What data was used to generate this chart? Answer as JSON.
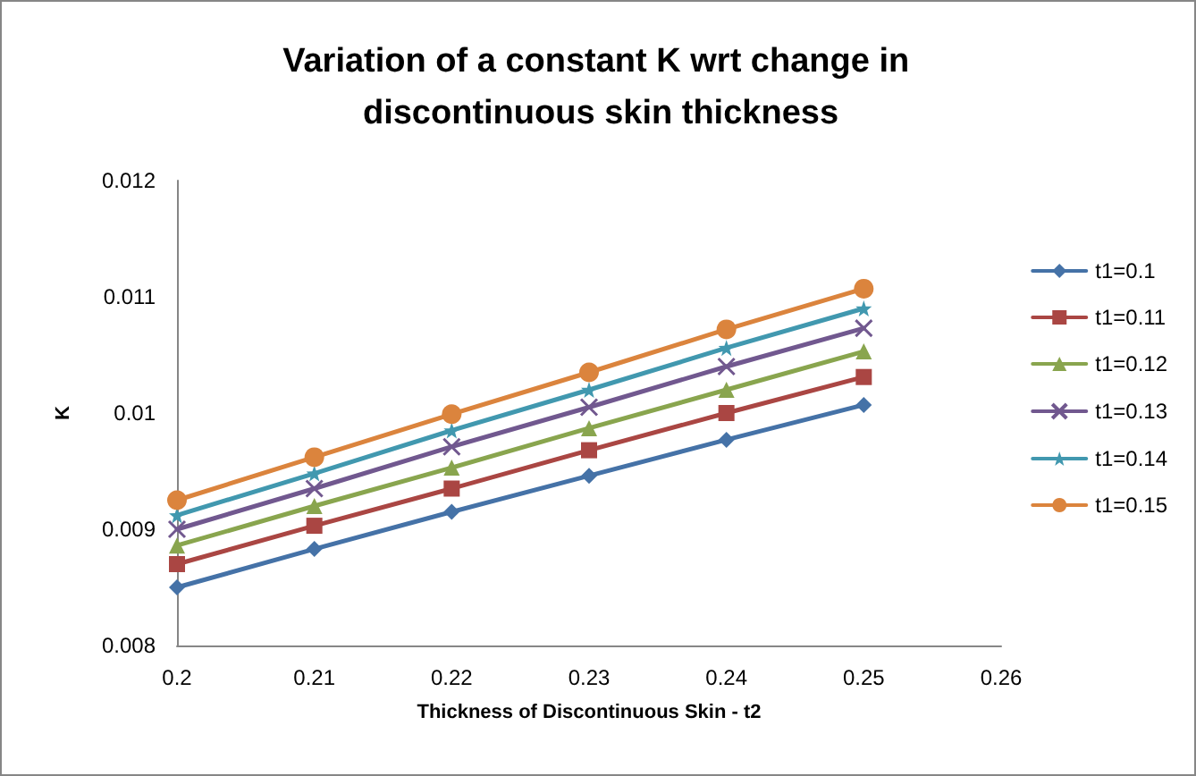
{
  "chart_data": {
    "type": "line",
    "title": "Variation of a constant K wrt change in discontinuous skin thickness",
    "xlabel": "Thickness of Discontinuous Skin - t2",
    "ylabel": "K",
    "x": [
      0.2,
      0.21,
      0.22,
      0.23,
      0.24,
      0.25
    ],
    "series": [
      {
        "name": "t1=0.1",
        "color": "#4572a7",
        "marker": "diamond",
        "values": [
          0.0085,
          0.00883,
          0.00915,
          0.00946,
          0.00977,
          0.01007
        ]
      },
      {
        "name": "t1=0.11",
        "color": "#aa4643",
        "marker": "square",
        "values": [
          0.0087,
          0.00903,
          0.00935,
          0.00968,
          0.01,
          0.01031
        ]
      },
      {
        "name": "t1=0.12",
        "color": "#89a54e",
        "marker": "triangle",
        "values": [
          0.00886,
          0.0092,
          0.00953,
          0.00987,
          0.0102,
          0.01053
        ]
      },
      {
        "name": "t1=0.13",
        "color": "#71588f",
        "marker": "cross",
        "values": [
          0.009,
          0.00935,
          0.00971,
          0.01005,
          0.0104,
          0.01073
        ]
      },
      {
        "name": "t1=0.14",
        "color": "#4198af",
        "marker": "star",
        "values": [
          0.00912,
          0.00948,
          0.00985,
          0.0102,
          0.01056,
          0.0109
        ]
      },
      {
        "name": "t1=0.15",
        "color": "#db843d",
        "marker": "circle",
        "values": [
          0.00925,
          0.00962,
          0.00999,
          0.01035,
          0.01072,
          0.01107
        ]
      }
    ],
    "xlim": [
      0.2,
      0.26
    ],
    "xticks": [
      0.2,
      0.21,
      0.22,
      0.23,
      0.24,
      0.25,
      0.26
    ],
    "ylim": [
      0.008,
      0.012
    ],
    "yticks": [
      0.008,
      0.009,
      0.01,
      0.011,
      0.012
    ],
    "grid": false,
    "legend": "right",
    "line_style": "solid"
  }
}
